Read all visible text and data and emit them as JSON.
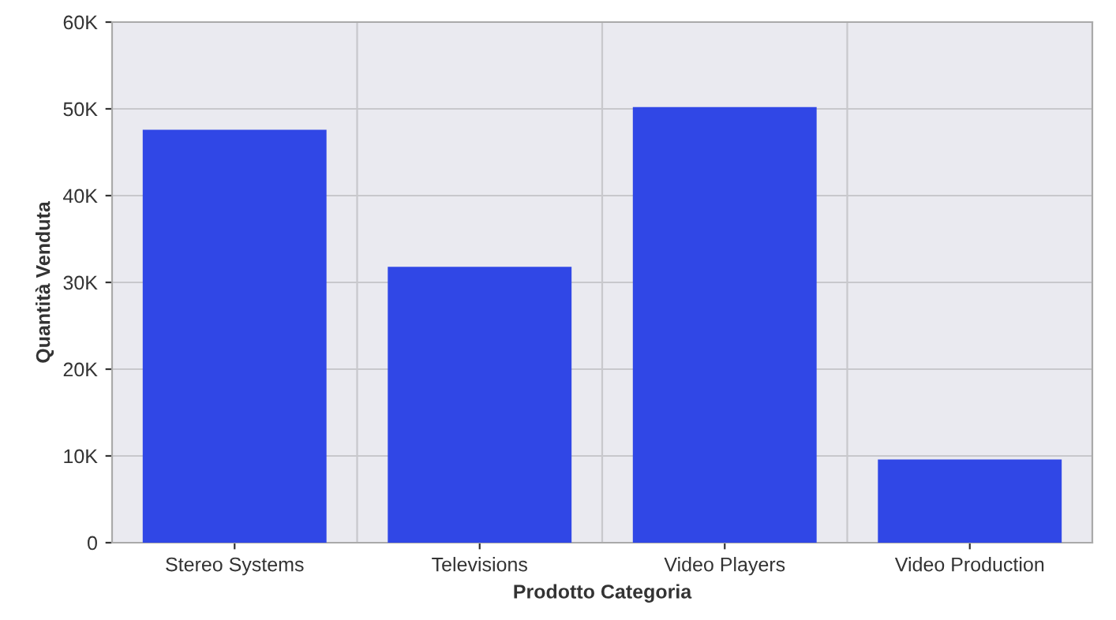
{
  "chart_data": {
    "type": "bar",
    "xlabel": "Prodotto Categoria",
    "ylabel": "Quantità Venduta",
    "categories": [
      "Stereo Systems",
      "Televisions",
      "Video Players",
      "Video Production"
    ],
    "values": [
      47600,
      31800,
      50200,
      9600
    ],
    "color": "#3047e6",
    "ylim": [
      0,
      60000
    ],
    "yticks": [
      {
        "value": 0,
        "label": "0"
      },
      {
        "value": 10000,
        "label": "10K"
      },
      {
        "value": 20000,
        "label": "20K"
      },
      {
        "value": 30000,
        "label": "30K"
      },
      {
        "value": 40000,
        "label": "40K"
      },
      {
        "value": 50000,
        "label": "50K"
      },
      {
        "value": 60000,
        "label": "60K"
      }
    ],
    "grid": true
  }
}
